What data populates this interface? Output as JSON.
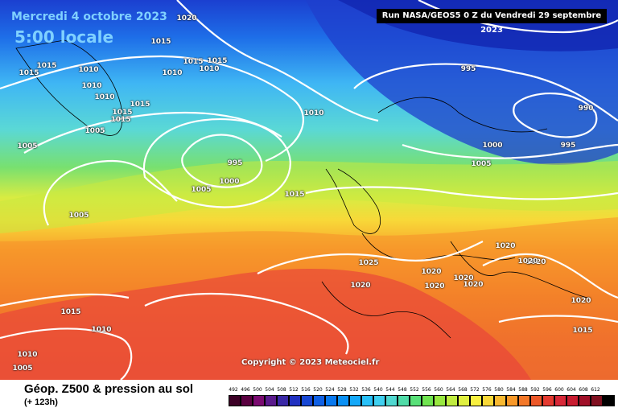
{
  "header": {
    "date_label": "Mercredi 4 octobre 2023",
    "local_time": "5:00 locale",
    "run_label": "Run NASA/GEOS5 0 Z du Vendredi 29 septembre 2023"
  },
  "copyright": "Copyright © 2023 Meteociel.fr",
  "footer": {
    "title": "Géop. Z500 & pression au sol",
    "subtitle": "(+ 123h)"
  },
  "legend": {
    "values": [
      "492",
      "496",
      "500",
      "504",
      "508",
      "512",
      "516",
      "520",
      "524",
      "528",
      "532",
      "536",
      "540",
      "544",
      "548",
      "552",
      "556",
      "560",
      "564",
      "568",
      "572",
      "576",
      "580",
      "584",
      "588",
      "592",
      "596",
      "600",
      "604",
      "608",
      "612"
    ],
    "colors": [
      "#3c0026",
      "#5a0040",
      "#7a0a70",
      "#5a1a8c",
      "#3a28a6",
      "#2030c0",
      "#1848d4",
      "#1060e4",
      "#0878ee",
      "#0a90f4",
      "#14a8f8",
      "#28c0f8",
      "#40d0f0",
      "#50d8d0",
      "#50dca8",
      "#58e078",
      "#70e450",
      "#98e840",
      "#c0ec40",
      "#e0f040",
      "#f8f040",
      "#f8d838",
      "#f8b830",
      "#f89828",
      "#f47828",
      "#ec5828",
      "#e43a30",
      "#d82838",
      "#c81c30",
      "#a01028",
      "#801020",
      "#000000"
    ]
  },
  "pressure_labels": [
    {
      "text": "1020"
    },
    {
      "text": "1015"
    },
    {
      "text": "1015"
    },
    {
      "text": "1015"
    },
    {
      "text": "1010"
    },
    {
      "text": "1015"
    },
    {
      "text": "1010"
    },
    {
      "text": "1010"
    },
    {
      "text": "1010"
    },
    {
      "text": "1015"
    },
    {
      "text": "1015"
    },
    {
      "text": "1015"
    },
    {
      "text": "1015"
    },
    {
      "text": "1005"
    },
    {
      "text": "1010"
    },
    {
      "text": "1005"
    },
    {
      "text": "995"
    },
    {
      "text": "1000"
    },
    {
      "text": "1005"
    },
    {
      "text": "1005"
    },
    {
      "text": "1015"
    },
    {
      "text": "995"
    },
    {
      "text": "1010"
    },
    {
      "text": "990"
    },
    {
      "text": "1000"
    },
    {
      "text": "995"
    },
    {
      "text": "1005"
    },
    {
      "text": "1020"
    },
    {
      "text": "1025"
    },
    {
      "text": "1020"
    },
    {
      "text": "1020"
    },
    {
      "text": "1020"
    },
    {
      "text": "1020"
    },
    {
      "text": "1020"
    },
    {
      "text": "1020"
    },
    {
      "text": "1020"
    },
    {
      "text": "1020"
    },
    {
      "text": "1015"
    },
    {
      "text": "1015"
    },
    {
      "text": "1010"
    },
    {
      "text": "1010"
    },
    {
      "text": "1005"
    }
  ]
}
